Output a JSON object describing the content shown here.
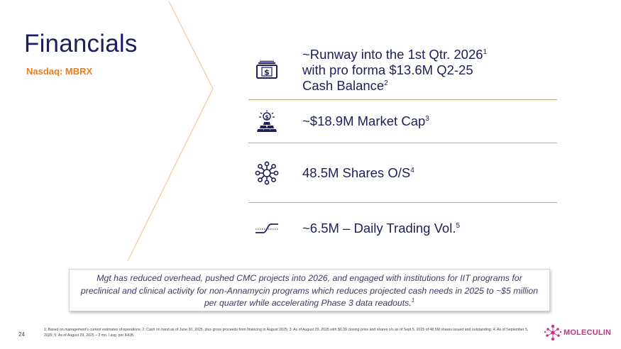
{
  "slide": {
    "title": "Financials",
    "ticker": "Nasdaq: MBRX",
    "page_number": "24"
  },
  "metrics": [
    {
      "icon": "cash-icon",
      "line1_main": "~Runway into the 1st Qtr. 2026",
      "line1_sup": "1",
      "line2": "with pro forma $13.6M Q2-25",
      "line3_main": "Cash Balance",
      "line3_sup": "2"
    },
    {
      "icon": "gold-bars-icon",
      "text": "~$18.9M Market Cap",
      "sup": "3"
    },
    {
      "icon": "network-nodes-icon",
      "text": "48.5M Shares O/S",
      "sup": "4"
    },
    {
      "icon": "trend-curve-icon",
      "text": "~6.5M – Daily Trading Vol.",
      "sup": "5"
    }
  ],
  "note": {
    "text": "Mgt has reduced overhead, pushed CMC projects into 2026, and engaged with institutions for IIT programs for preclinical and clinical activity for non-Annamycin programs which reduces projected cash needs in 2025 to ~$5 million per quarter while accelerating Phase 3 data readouts.",
    "sup": "1"
  },
  "footnote": "1: Based on management's current estimates of operations; 2: Cash on hand as of June 30, 2025, plus gross proceeds from financing in August 2025; 3: As of August 29, 2025 with $0.39 closing price and shares o/s as of Sept 5, 2025 of 48.5M shares issued and outstanding; 4: As of September 5, 2025; 5: As of August 29, 2025 – 3 mo. l avg. per IHUB.",
  "logo": {
    "name": "MOLECULIN"
  },
  "colors": {
    "navy": "#1d1f5c",
    "orange": "#e87d21",
    "magenta": "#c6318a",
    "divider": "#b8b27a"
  }
}
